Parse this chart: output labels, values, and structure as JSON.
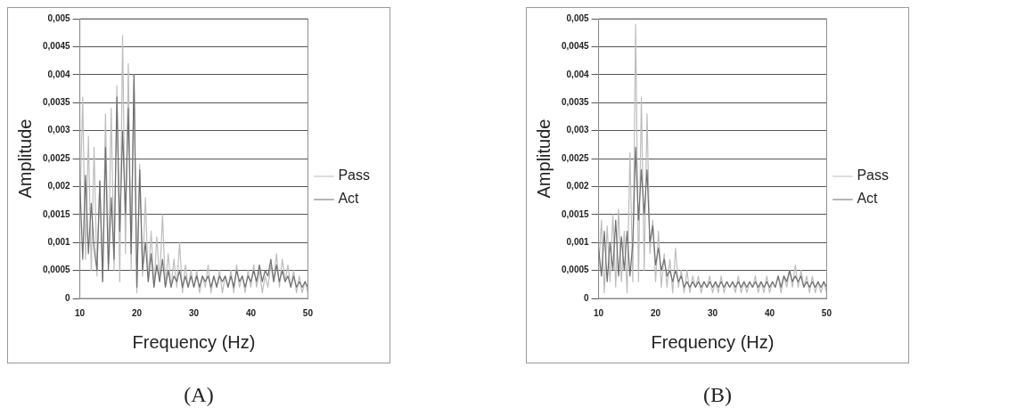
{
  "chart_data": [
    {
      "type": "line",
      "xlabel": "Frequency (Hz)",
      "ylabel": "Amplitude",
      "annotations": [
        "(A)"
      ],
      "legend": "right",
      "grid": "y",
      "marker": "none",
      "line_style": "solid",
      "xlim": [
        10,
        50
      ],
      "xticks": [
        10,
        20,
        30,
        40,
        50
      ],
      "ylim": [
        0,
        0.005
      ],
      "yticks": [
        0,
        {
          "value": 0.0005,
          "label": "0,0005"
        },
        {
          "value": 0.001,
          "label": "0,001"
        },
        {
          "value": 0.0015,
          "label": "0,0015"
        },
        {
          "value": 0.002,
          "label": "0,002"
        },
        {
          "value": 0.0025,
          "label": "0,0025"
        },
        {
          "value": 0.003,
          "label": "0,003"
        },
        {
          "value": 0.0035,
          "label": "0,0035"
        },
        {
          "value": 0.004,
          "label": "0,004"
        },
        {
          "value": 0.0045,
          "label": "0,0045"
        },
        {
          "value": 0.005,
          "label": "0,005"
        }
      ],
      "x": [
        10,
        10.5,
        11,
        11.5,
        12,
        12.5,
        13,
        13.5,
        14,
        14.5,
        15,
        15.5,
        16,
        16.5,
        17,
        17.5,
        18,
        18.5,
        19,
        19.5,
        20,
        20.5,
        21,
        21.5,
        22,
        22.5,
        23,
        23.5,
        24,
        24.5,
        25,
        25.5,
        26,
        26.5,
        27,
        27.5,
        28,
        28.5,
        29,
        29.5,
        30,
        30.5,
        31,
        31.5,
        32,
        32.5,
        33,
        33.5,
        34,
        34.5,
        35,
        35.5,
        36,
        36.5,
        37,
        37.5,
        38,
        38.5,
        39,
        39.5,
        40,
        40.5,
        41,
        41.5,
        42,
        42.5,
        43,
        43.5,
        44,
        44.5,
        45,
        45.5,
        46,
        46.5,
        47,
        47.5,
        48,
        48.5,
        49,
        49.5,
        50
      ],
      "series": [
        {
          "name": "Pass",
          "color": "#bdbdbd",
          "values": [
            0.0015,
            0.0036,
            0.0007,
            0.0029,
            0.0005,
            0.0027,
            0.0004,
            0.0021,
            0.0003,
            0.0033,
            0.0006,
            0.0034,
            0.0005,
            0.0038,
            0.0003,
            0.0047,
            0.0008,
            0.0042,
            0.0005,
            0.004,
            0.0001,
            0.0024,
            0.0004,
            0.0018,
            0.0003,
            0.0012,
            0.0002,
            0.0011,
            0.0003,
            0.0015,
            0.0002,
            0.0008,
            0.0002,
            0.0007,
            0.0002,
            0.001,
            0.0001,
            0.0006,
            0.0002,
            0.0005,
            0.0002,
            0.0005,
            0.0001,
            0.0004,
            0.0002,
            0.0006,
            0.0001,
            0.0004,
            0.0002,
            0.0005,
            0.0001,
            0.0004,
            0.0002,
            0.0005,
            0.0001,
            0.0006,
            0.0002,
            0.0004,
            0.0001,
            0.0005,
            0.0002,
            0.0006,
            0.0002,
            0.0005,
            0.0001,
            0.0004,
            0.0002,
            0.0006,
            0.0003,
            0.0008,
            0.0002,
            0.0007,
            0.0003,
            0.0006,
            0.0002,
            0.0005,
            0.0001,
            0.0004,
            0.0001,
            0.0003,
            0.0001
          ]
        },
        {
          "name": "Act",
          "color": "#6e6e6e",
          "values": [
            0.0021,
            0.0007,
            0.0022,
            0.0008,
            0.0017,
            0.0009,
            0.0005,
            0.0021,
            0.0003,
            0.0027,
            0.0005,
            0.0018,
            0.0007,
            0.0036,
            0.0012,
            0.003,
            0.0015,
            0.0034,
            0.0008,
            0.004,
            0.0002,
            0.0023,
            0.0005,
            0.001,
            0.0003,
            0.0008,
            0.0002,
            0.0006,
            0.0003,
            0.0007,
            0.0002,
            0.0005,
            0.0002,
            0.0004,
            0.0003,
            0.0005,
            0.0002,
            0.0004,
            0.0002,
            0.0004,
            0.0002,
            0.0004,
            0.0002,
            0.0004,
            0.0003,
            0.0004,
            0.0002,
            0.0004,
            0.0002,
            0.0004,
            0.0003,
            0.0004,
            0.0002,
            0.0004,
            0.0002,
            0.0005,
            0.0003,
            0.0004,
            0.0002,
            0.0004,
            0.0003,
            0.0005,
            0.0003,
            0.0006,
            0.0003,
            0.0005,
            0.0004,
            0.0007,
            0.0003,
            0.0006,
            0.0003,
            0.0005,
            0.0003,
            0.0004,
            0.0002,
            0.0004,
            0.0002,
            0.0003,
            0.0002,
            0.0003,
            0.0002
          ]
        }
      ]
    },
    {
      "type": "line",
      "xlabel": "Frequency (Hz)",
      "ylabel": "Amplitude",
      "annotations": [
        "(B)"
      ],
      "legend": "right",
      "grid": "y",
      "marker": "none",
      "line_style": "solid",
      "xlim": [
        10,
        50
      ],
      "xticks": [
        10,
        20,
        30,
        40,
        50
      ],
      "ylim": [
        0,
        0.005
      ],
      "yticks": [
        0,
        {
          "value": 0.0005,
          "label": "0,0005"
        },
        {
          "value": 0.001,
          "label": "0,001"
        },
        {
          "value": 0.0015,
          "label": "0,0015"
        },
        {
          "value": 0.002,
          "label": "0,002"
        },
        {
          "value": 0.0025,
          "label": "0,0025"
        },
        {
          "value": 0.003,
          "label": "0,003"
        },
        {
          "value": 0.0035,
          "label": "0,0035"
        },
        {
          "value": 0.004,
          "label": "0,004"
        },
        {
          "value": 0.0045,
          "label": "0,0045"
        },
        {
          "value": 0.005,
          "label": "0,005"
        }
      ],
      "x": [
        10,
        10.5,
        11,
        11.5,
        12,
        12.5,
        13,
        13.5,
        14,
        14.5,
        15,
        15.5,
        16,
        16.5,
        17,
        17.5,
        18,
        18.5,
        19,
        19.5,
        20,
        20.5,
        21,
        21.5,
        22,
        22.5,
        23,
        23.5,
        24,
        24.5,
        25,
        25.5,
        26,
        26.5,
        27,
        27.5,
        28,
        28.5,
        29,
        29.5,
        30,
        30.5,
        31,
        31.5,
        32,
        32.5,
        33,
        33.5,
        34,
        34.5,
        35,
        35.5,
        36,
        36.5,
        37,
        37.5,
        38,
        38.5,
        39,
        39.5,
        40,
        40.5,
        41,
        41.5,
        42,
        42.5,
        43,
        43.5,
        44,
        44.5,
        45,
        45.5,
        46,
        46.5,
        47,
        47.5,
        48,
        48.5,
        49,
        49.5,
        50
      ],
      "series": [
        {
          "name": "Pass",
          "color": "#bdbdbd",
          "values": [
            0.0005,
            0.0014,
            0.0001,
            0.0013,
            0.0003,
            0.0015,
            0.0002,
            0.0016,
            0.0003,
            0.0012,
            0.0001,
            0.0026,
            0.0003,
            0.0049,
            0.0003,
            0.0036,
            0.0005,
            0.0033,
            0.0008,
            0.0014,
            0.0003,
            0.0012,
            0.0002,
            0.0008,
            0.0002,
            0.0007,
            0.0001,
            0.0009,
            0.0002,
            0.0005,
            0.0001,
            0.0005,
            0.0001,
            0.0004,
            0.0002,
            0.0004,
            0.0001,
            0.0003,
            0.0002,
            0.0004,
            0.0001,
            0.0003,
            0.0001,
            0.0004,
            0.0001,
            0.0003,
            0.0002,
            0.0003,
            0.0001,
            0.0004,
            0.0001,
            0.0003,
            0.0001,
            0.0003,
            0.0002,
            0.0004,
            0.0001,
            0.0003,
            0.0001,
            0.0004,
            0.0001,
            0.0003,
            0.0002,
            0.0004,
            0.0001,
            0.0004,
            0.0002,
            0.0005,
            0.0002,
            0.0006,
            0.0002,
            0.0005,
            0.0002,
            0.0004,
            0.0001,
            0.0004,
            0.0001,
            0.0003,
            0.0001,
            0.0003,
            0.0001
          ]
        },
        {
          "name": "Act",
          "color": "#6e6e6e",
          "values": [
            0.0009,
            0.0004,
            0.0012,
            0.0003,
            0.001,
            0.0005,
            0.0014,
            0.0004,
            0.0011,
            0.0005,
            0.0012,
            0.0004,
            0.001,
            0.0027,
            0.0014,
            0.0023,
            0.0015,
            0.0023,
            0.001,
            0.0013,
            0.0006,
            0.0009,
            0.0005,
            0.0007,
            0.0004,
            0.0005,
            0.0003,
            0.0005,
            0.0003,
            0.0004,
            0.0002,
            0.0003,
            0.0002,
            0.0003,
            0.0002,
            0.0003,
            0.0002,
            0.0003,
            0.0002,
            0.0003,
            0.0002,
            0.0003,
            0.0002,
            0.0003,
            0.0002,
            0.0003,
            0.0002,
            0.0003,
            0.0002,
            0.0003,
            0.0002,
            0.0003,
            0.0002,
            0.0003,
            0.0002,
            0.0003,
            0.0002,
            0.0003,
            0.0002,
            0.0003,
            0.0002,
            0.0003,
            0.0002,
            0.0004,
            0.0002,
            0.0004,
            0.0003,
            0.0005,
            0.0003,
            0.0004,
            0.0003,
            0.0004,
            0.0002,
            0.0003,
            0.0002,
            0.0003,
            0.0002,
            0.0003,
            0.0002,
            0.0003,
            0.0002
          ]
        }
      ]
    }
  ]
}
